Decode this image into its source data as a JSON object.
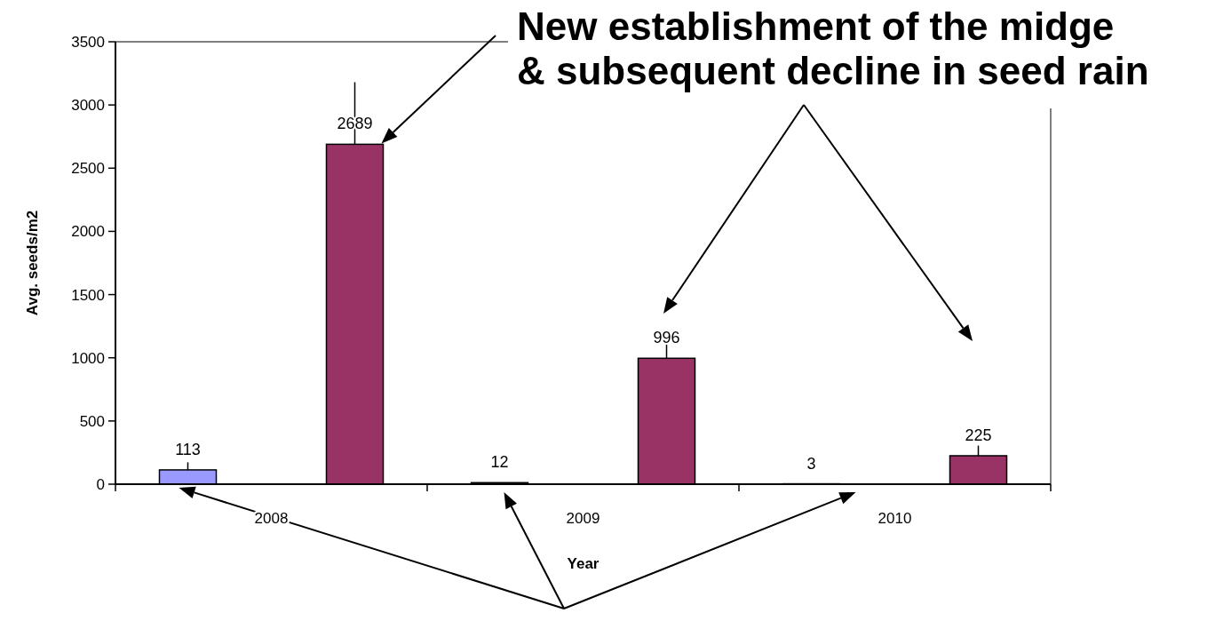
{
  "chart_data": {
    "type": "bar",
    "xlabel": "Year",
    "ylabel": "Avg. seeds/m2",
    "categories": [
      "2008",
      "2009",
      "2010"
    ],
    "series": [
      {
        "color": "#9999ff",
        "values": [
          113,
          12,
          3
        ],
        "errors": [
          [
            113,
            173
          ],
          null,
          null
        ]
      },
      {
        "color": "#993366",
        "values": [
          2689,
          996,
          225
        ],
        "errors": [
          [
            2689,
            3180
          ],
          [
            996,
            1110
          ],
          [
            225,
            305
          ]
        ]
      }
    ],
    "ylim": [
      0,
      3500
    ],
    "yticks": [
      0,
      500,
      1000,
      1500,
      2000,
      2500,
      3000,
      3500
    ],
    "data_labels": true,
    "grid": false,
    "annotations": [
      "New establishment of the midge\n& subsequent decline in seed rain"
    ]
  }
}
